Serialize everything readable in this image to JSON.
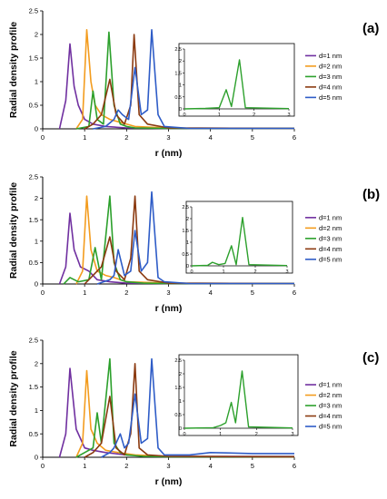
{
  "chart_data": [
    {
      "type": "line",
      "panel_label": "(a)",
      "xlabel": "r (nm)",
      "ylabel": "Radial density profile",
      "xlim": [
        0,
        6
      ],
      "ylim": [
        0,
        2.5
      ],
      "xticks": [
        "0",
        "1",
        "2",
        "3",
        "4",
        "5",
        "6"
      ],
      "yticks": [
        "0",
        "0.5",
        "1",
        "1.5",
        "2",
        "2.5"
      ],
      "legend_position": "right",
      "series": [
        {
          "name": "d=1 nm",
          "color": "#7030a0",
          "x": [
            0.4,
            0.55,
            0.65,
            0.75,
            0.85,
            1.0,
            1.2,
            1.5,
            2.0,
            3.0,
            6.0
          ],
          "y": [
            0,
            0.6,
            1.8,
            0.9,
            0.5,
            0.2,
            0.1,
            0.05,
            0.02,
            0.01,
            0.01
          ]
        },
        {
          "name": "d=2 nm",
          "color": "#f39c1e",
          "x": [
            0.8,
            0.95,
            1.05,
            1.15,
            1.25,
            1.4,
            1.6,
            1.8,
            2.2,
            3.0,
            6.0
          ],
          "y": [
            0,
            0.2,
            2.1,
            1.0,
            0.5,
            0.3,
            0.2,
            0.15,
            0.05,
            0.02,
            0.01
          ]
        },
        {
          "name": "d=3 nm",
          "color": "#2ca02c",
          "x": [
            0.8,
            1.1,
            1.2,
            1.3,
            1.45,
            1.58,
            1.7,
            1.85,
            2.0,
            2.2,
            3.0,
            6.0
          ],
          "y": [
            0,
            0.05,
            0.8,
            0.2,
            0.1,
            2.05,
            0.5,
            0.1,
            0.05,
            0.02,
            0.01,
            0.01
          ]
        },
        {
          "name": "d=4 nm",
          "color": "#8b3a10",
          "x": [
            1.0,
            1.2,
            1.4,
            1.6,
            1.75,
            1.95,
            2.1,
            2.18,
            2.3,
            2.5,
            3.0,
            6.0
          ],
          "y": [
            0,
            0.1,
            0.3,
            1.05,
            0.3,
            0.1,
            0.5,
            2.0,
            0.3,
            0.1,
            0.02,
            0.01
          ]
        },
        {
          "name": "d=5 nm",
          "color": "#2e5cc7",
          "x": [
            1.2,
            1.5,
            1.7,
            1.8,
            1.9,
            2.05,
            2.2,
            2.35,
            2.5,
            2.6,
            2.75,
            2.9,
            3.5,
            6.0
          ],
          "y": [
            0,
            0.05,
            0.2,
            0.4,
            0.3,
            0.2,
            1.3,
            0.3,
            0.4,
            2.1,
            0.3,
            0.05,
            0.01,
            0.01
          ]
        }
      ],
      "inset": {
        "xlim": [
          0,
          3
        ],
        "ylim": [
          0,
          2.5
        ],
        "xticks": [
          "0",
          "1",
          "2",
          "3"
        ],
        "yticks": [
          "0",
          "0.5",
          "1",
          "1.5",
          "2",
          "2.5"
        ],
        "series": [
          {
            "color": "#2ca02c",
            "x": [
              0,
              0.6,
              1.0,
              1.2,
              1.35,
              1.58,
              1.75,
              3.0
            ],
            "y": [
              0,
              0.02,
              0.05,
              0.8,
              0.1,
              2.05,
              0.05,
              0.01
            ]
          }
        ]
      }
    },
    {
      "type": "line",
      "panel_label": "(b)",
      "xlabel": "r (nm)",
      "ylabel": "Radial density profile",
      "xlim": [
        0,
        6
      ],
      "ylim": [
        0,
        2.5
      ],
      "xticks": [
        "0",
        "1",
        "2",
        "3",
        "4",
        "5",
        "6"
      ],
      "yticks": [
        "0",
        "0.5",
        "1",
        "1.5",
        "2",
        "2.5"
      ],
      "legend_position": "right",
      "series": [
        {
          "name": "d=1 nm",
          "color": "#7030a0",
          "x": [
            0.4,
            0.55,
            0.65,
            0.75,
            0.9,
            1.1,
            1.3,
            1.6,
            2.0,
            3.0,
            6.0
          ],
          "y": [
            0,
            0.4,
            1.65,
            0.8,
            0.4,
            0.3,
            0.1,
            0.05,
            0.02,
            0.01,
            0.01
          ]
        },
        {
          "name": "d=2 nm",
          "color": "#f39c1e",
          "x": [
            0.8,
            0.95,
            1.05,
            1.15,
            1.3,
            1.5,
            1.7,
            2.0,
            3.0,
            6.0
          ],
          "y": [
            0,
            0.3,
            2.05,
            0.8,
            0.3,
            0.2,
            0.15,
            0.05,
            0.02,
            0.01
          ]
        },
        {
          "name": "d=3 nm",
          "color": "#2ca02c",
          "x": [
            0.5,
            0.65,
            0.85,
            1.1,
            1.25,
            1.4,
            1.6,
            1.7,
            1.85,
            2.0,
            2.4,
            3.0,
            6.0
          ],
          "y": [
            0,
            0.15,
            0.05,
            0.1,
            0.85,
            0.1,
            2.05,
            0.5,
            0.1,
            0.05,
            0.02,
            0.01,
            0.01
          ]
        },
        {
          "name": "d=4 nm",
          "color": "#8b3a10",
          "x": [
            1.0,
            1.2,
            1.4,
            1.6,
            1.75,
            1.95,
            2.1,
            2.2,
            2.3,
            2.5,
            3.0,
            6.0
          ],
          "y": [
            0,
            0.2,
            0.4,
            1.1,
            0.3,
            0.1,
            0.6,
            2.05,
            0.3,
            0.1,
            0.02,
            0.01
          ]
        },
        {
          "name": "d=5 nm",
          "color": "#2e5cc7",
          "x": [
            1.3,
            1.6,
            1.7,
            1.8,
            1.95,
            2.1,
            2.2,
            2.35,
            2.5,
            2.6,
            2.75,
            2.9,
            3.5,
            6.0
          ],
          "y": [
            0,
            0.1,
            0.2,
            0.8,
            0.2,
            0.3,
            1.25,
            0.3,
            0.5,
            2.15,
            0.15,
            0.05,
            0.01,
            0.01
          ]
        }
      ],
      "inset": {
        "xlim": [
          0,
          3
        ],
        "ylim": [
          0,
          2.5
        ],
        "xticks": [
          "0",
          "1",
          "2",
          "3"
        ],
        "yticks": [
          "0",
          "0.5",
          "1",
          "1.5",
          "2",
          "2.5"
        ],
        "series": [
          {
            "color": "#2ca02c",
            "x": [
              0,
              0.5,
              0.65,
              0.85,
              1.05,
              1.25,
              1.4,
              1.6,
              1.8,
              3.0
            ],
            "y": [
              0,
              0.02,
              0.15,
              0.05,
              0.1,
              0.85,
              0.05,
              2.05,
              0.05,
              0.01
            ]
          }
        ]
      }
    },
    {
      "type": "line",
      "panel_label": "(c)",
      "xlabel": "r (nm)",
      "ylabel": "Radial density profile",
      "xlim": [
        0,
        6
      ],
      "ylim": [
        0,
        2.5
      ],
      "xticks": [
        "0",
        "1",
        "2",
        "3",
        "4",
        "5",
        "6"
      ],
      "yticks": [
        "0",
        "0.5",
        "1",
        "1.5",
        "2",
        "2.5"
      ],
      "legend_position": "right",
      "series": [
        {
          "name": "d=1 nm",
          "color": "#7030a0",
          "x": [
            0.4,
            0.55,
            0.65,
            0.8,
            1.0,
            1.2,
            1.5,
            2.0,
            3.0,
            6.0
          ],
          "y": [
            0,
            0.5,
            1.9,
            0.6,
            0.2,
            0.15,
            0.1,
            0.05,
            0.02,
            0.02
          ]
        },
        {
          "name": "d=2 nm",
          "color": "#f39c1e",
          "x": [
            0.8,
            0.95,
            1.05,
            1.15,
            1.3,
            1.5,
            1.8,
            2.2,
            3.0,
            6.0
          ],
          "y": [
            0,
            0.3,
            1.85,
            0.6,
            0.3,
            0.15,
            0.1,
            0.05,
            0.02,
            0.01
          ]
        },
        {
          "name": "d=3 nm",
          "color": "#2ca02c",
          "x": [
            0.8,
            1.0,
            1.2,
            1.3,
            1.4,
            1.6,
            1.7,
            1.85,
            2.0,
            2.4,
            3.0,
            6.0
          ],
          "y": [
            0,
            0.1,
            0.2,
            0.95,
            0.3,
            2.1,
            0.3,
            0.1,
            0.05,
            0.02,
            0.01,
            0.01
          ]
        },
        {
          "name": "d=4 nm",
          "color": "#8b3a10",
          "x": [
            1.0,
            1.2,
            1.4,
            1.6,
            1.75,
            1.95,
            2.1,
            2.2,
            2.3,
            2.5,
            3.0,
            6.0
          ],
          "y": [
            0,
            0.1,
            0.3,
            1.3,
            0.2,
            0.05,
            0.5,
            2.0,
            0.2,
            0.05,
            0.02,
            0.01
          ]
        },
        {
          "name": "d=5 nm",
          "color": "#2e5cc7",
          "x": [
            1.4,
            1.6,
            1.7,
            1.85,
            1.95,
            2.05,
            2.2,
            2.35,
            2.5,
            2.6,
            2.75,
            2.9,
            3.5,
            4.0,
            5.0,
            6.0
          ],
          "y": [
            0,
            0.1,
            0.2,
            0.5,
            0.2,
            0.3,
            1.35,
            0.3,
            0.4,
            2.1,
            0.2,
            0.05,
            0.05,
            0.1,
            0.08,
            0.08
          ]
        }
      ],
      "inset": {
        "xlim": [
          0,
          3
        ],
        "ylim": [
          0,
          2.5
        ],
        "xticks": [
          "0",
          "1",
          "2",
          "3"
        ],
        "yticks": [
          "0",
          "0.5",
          "1",
          "1.5",
          "2",
          "2.5"
        ],
        "series": [
          {
            "color": "#2ca02c",
            "x": [
              0,
              0.8,
              1.0,
              1.15,
              1.3,
              1.42,
              1.6,
              1.78,
              3.0
            ],
            "y": [
              0,
              0.02,
              0.1,
              0.2,
              0.95,
              0.2,
              2.1,
              0.05,
              0.01
            ]
          }
        ]
      }
    }
  ]
}
